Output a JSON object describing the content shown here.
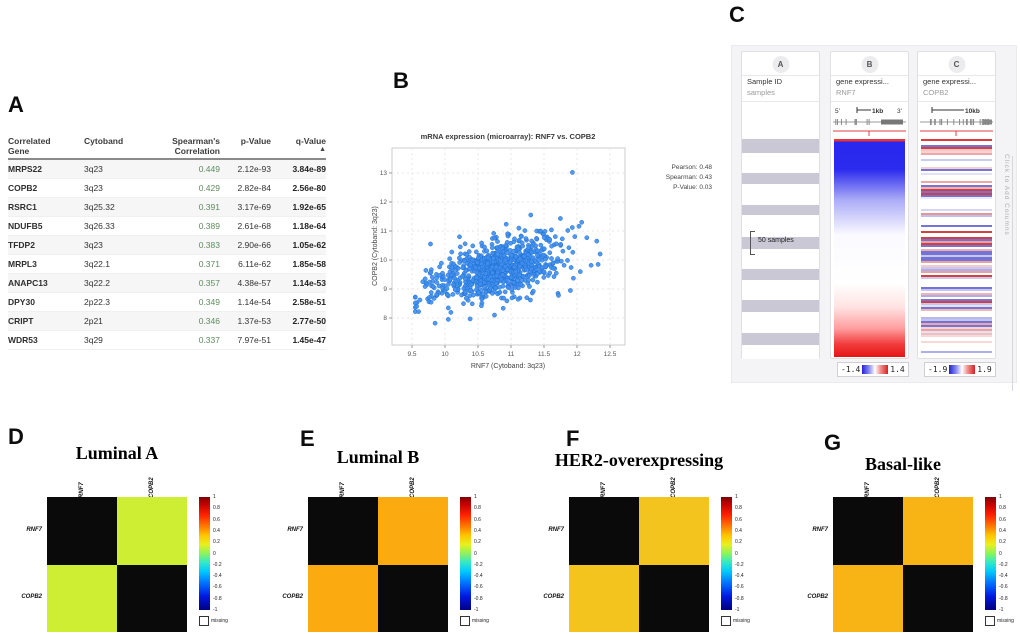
{
  "panel_labels": [
    "A",
    "B",
    "C",
    "D",
    "E",
    "F",
    "G"
  ],
  "table": {
    "headers": [
      {
        "line1": "Correlated",
        "line2": "Gene"
      },
      {
        "line1": "Cytoband",
        "line2": ""
      },
      {
        "line1": "Spearman's",
        "line2": "Correlation"
      },
      {
        "line1": "p-Value",
        "line2": ""
      },
      {
        "line1": "q-Value",
        "line2": "▲"
      }
    ],
    "rows": [
      {
        "gene": "MRPS22",
        "cytoband": "3q23",
        "corr": "0.449",
        "p": "2.12e-93",
        "q": "3.84e-89"
      },
      {
        "gene": "COPB2",
        "cytoband": "3q23",
        "corr": "0.429",
        "p": "2.82e-84",
        "q": "2.56e-80"
      },
      {
        "gene": "RSRC1",
        "cytoband": "3q25.32",
        "corr": "0.391",
        "p": "3.17e-69",
        "q": "1.92e-65"
      },
      {
        "gene": "NDUFB5",
        "cytoband": "3q26.33",
        "corr": "0.389",
        "p": "2.61e-68",
        "q": "1.18e-64"
      },
      {
        "gene": "TFDP2",
        "cytoband": "3q23",
        "corr": "0.383",
        "p": "2.90e-66",
        "q": "1.05e-62"
      },
      {
        "gene": "MRPL3",
        "cytoband": "3q22.1",
        "corr": "0.371",
        "p": "6.11e-62",
        "q": "1.85e-58"
      },
      {
        "gene": "ANAPC13",
        "cytoband": "3q22.2",
        "corr": "0.357",
        "p": "4.38e-57",
        "q": "1.14e-53"
      },
      {
        "gene": "DPY30",
        "cytoband": "2p22.3",
        "corr": "0.349",
        "p": "1.14e-54",
        "q": "2.58e-51"
      },
      {
        "gene": "CRIPT",
        "cytoband": "2p21",
        "corr": "0.346",
        "p": "1.37e-53",
        "q": "2.77e-50"
      },
      {
        "gene": "WDR53",
        "cytoband": "3q29",
        "corr": "0.337",
        "p": "7.97e-51",
        "q": "1.45e-47"
      }
    ],
    "corr_color": "#5f8a5f"
  },
  "scatter": {
    "stats": [
      "Pearson: 0.48",
      "Spearman: 0.43",
      "P-Value: 0.03"
    ],
    "point_color": "#3f8ff0",
    "point_edge": "#1f6fd0"
  },
  "xena": {
    "columns": [
      {
        "badge": "A",
        "title": "Sample ID",
        "subtitle": "samples",
        "annotation": "50 samples"
      },
      {
        "badge": "B",
        "title": "gene expressi...",
        "subtitle": "RNF7",
        "ruler_left": "5'",
        "ruler_scale": "1kb",
        "ruler_right": "3'",
        "legend_min": "-1.4",
        "legend_max": "1.4"
      },
      {
        "badge": "C",
        "title": "gene expressi...",
        "subtitle": "COPB2",
        "ruler_scale": "10kb",
        "legend_min": "-1.9",
        "legend_max": "1.9"
      }
    ],
    "side_text": "Click to Add Columns"
  },
  "subtype_heatmaps": {
    "genes": [
      "RNF7",
      "COPB2"
    ],
    "colorbar_ticks": [
      "1",
      "0.8",
      "0.6",
      "0.4",
      "0.2",
      "0",
      "-0.2",
      "-0.4",
      "-0.6",
      "-0.8",
      "-1"
    ],
    "missing_label": "missing",
    "diagonal_color": "#0a0a0a",
    "panels": [
      {
        "label": "D",
        "title": "Luminal A",
        "cell_color": "#cdee33"
      },
      {
        "label": "E",
        "title": "Luminal B",
        "cell_color": "#fbab10"
      },
      {
        "label": "F",
        "title": "HER2-overexpressing",
        "cell_color": "#f2c41d"
      },
      {
        "label": "G",
        "title": "Basal-like",
        "cell_color": "#f8b314"
      }
    ]
  },
  "chart_data": [
    {
      "type": "scatter",
      "panel": "B",
      "title": "mRNA expression (microarray): RNF7 vs. COPB2",
      "xlabel": "RNF7 (Cytoband: 3q23)",
      "ylabel": "COPB2 (Cytoband: 3q23)",
      "xlim": [
        9.2,
        12.75
      ],
      "ylim": [
        7.1,
        13.9
      ],
      "xticks": [
        9.5,
        10,
        10.5,
        11,
        11.5,
        12,
        12.5
      ],
      "yticks": [
        8,
        9,
        10,
        11,
        12,
        13
      ],
      "grid": "dashed",
      "stats": {
        "pearson": 0.48,
        "spearman": 0.43,
        "p_value": 0.03
      },
      "cloud": {
        "n": 820,
        "x_mean": 10.82,
        "x_sd": 0.45,
        "y_mean": 9.72,
        "y_sd": 0.52,
        "r": 0.48,
        "seed": 12,
        "x_range": [
          9.55,
          12.35
        ],
        "y_range": [
          7.8,
          11.6
        ]
      },
      "outliers": [
        [
          11.93,
          13.02
        ],
        [
          11.3,
          11.55
        ],
        [
          11.12,
          11.1
        ],
        [
          10.22,
          10.8
        ],
        [
          9.78,
          10.55
        ],
        [
          12.3,
          10.65
        ],
        [
          11.45,
          11.0
        ],
        [
          12.32,
          9.85
        ],
        [
          11.9,
          8.95
        ],
        [
          11.72,
          8.78
        ],
        [
          9.62,
          8.62
        ],
        [
          9.6,
          8.22
        ],
        [
          9.85,
          7.82
        ],
        [
          10.05,
          7.95
        ],
        [
          10.38,
          7.97
        ],
        [
          10.75,
          8.1
        ],
        [
          9.7,
          9.35
        ],
        [
          12.05,
          9.6
        ],
        [
          9.57,
          8.4
        ]
      ]
    },
    {
      "type": "heatmap",
      "panel": "D",
      "title": "Luminal A",
      "x": [
        "RNF7",
        "COPB2"
      ],
      "y": [
        "RNF7",
        "COPB2"
      ],
      "values": [
        [
          null,
          0.25
        ],
        [
          0.25,
          null
        ]
      ],
      "diagonal_masked": true,
      "colormap": "jet",
      "vmin": -1,
      "vmax": 1
    },
    {
      "type": "heatmap",
      "panel": "E",
      "title": "Luminal B",
      "x": [
        "RNF7",
        "COPB2"
      ],
      "y": [
        "RNF7",
        "COPB2"
      ],
      "values": [
        [
          null,
          0.55
        ],
        [
          0.55,
          null
        ]
      ],
      "diagonal_masked": true,
      "colormap": "jet",
      "vmin": -1,
      "vmax": 1
    },
    {
      "type": "heatmap",
      "panel": "F",
      "title": "HER2-overexpressing",
      "x": [
        "RNF7",
        "COPB2"
      ],
      "y": [
        "RNF7",
        "COPB2"
      ],
      "values": [
        [
          null,
          0.45
        ],
        [
          0.45,
          null
        ]
      ],
      "diagonal_masked": true,
      "colormap": "jet",
      "vmin": -1,
      "vmax": 1
    },
    {
      "type": "heatmap",
      "panel": "G",
      "title": "Basal-like",
      "x": [
        "RNF7",
        "COPB2"
      ],
      "y": [
        "RNF7",
        "COPB2"
      ],
      "values": [
        [
          null,
          0.5
        ],
        [
          0.5,
          null
        ]
      ],
      "diagonal_masked": true,
      "colormap": "jet",
      "vmin": -1,
      "vmax": 1
    },
    {
      "type": "heatmap",
      "panel": "C",
      "columns": [
        {
          "name": "Sample ID",
          "unit": "samples",
          "group_label": "50 samples"
        },
        {
          "name": "gene expressi...",
          "gene": "RNF7",
          "ruler": "1kb",
          "value_range": [
            -1.4,
            1.4
          ]
        },
        {
          "name": "gene expressi...",
          "gene": "COPB2",
          "ruler": "10kb",
          "value_range": [
            -1.9,
            1.9
          ]
        }
      ]
    }
  ]
}
